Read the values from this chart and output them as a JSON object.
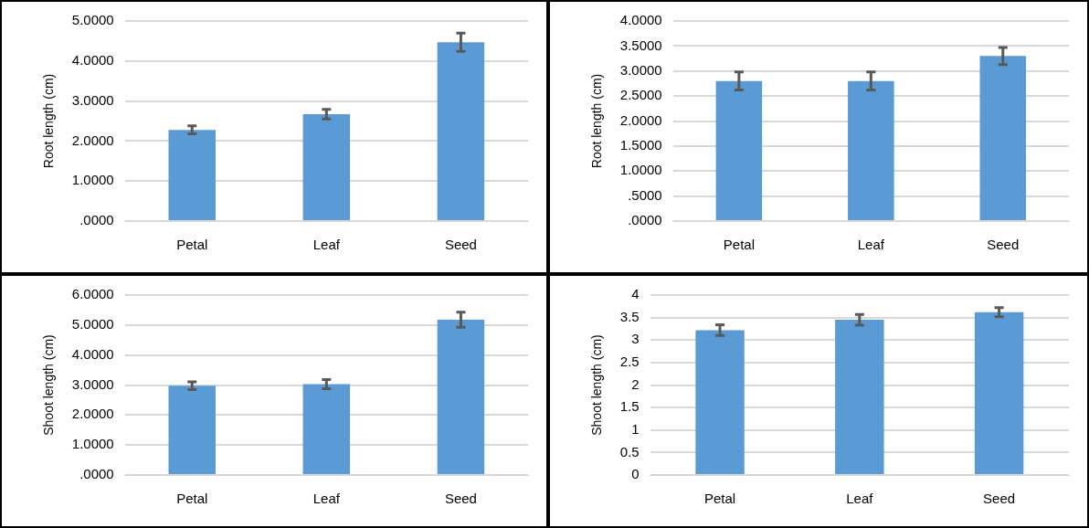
{
  "chart_data": [
    {
      "type": "bar",
      "ylabel": "Root length (cm)",
      "categories": [
        "Petal",
        "Leaf",
        "Seed"
      ],
      "values": [
        2.28,
        2.67,
        4.47
      ],
      "errors": [
        0.1,
        0.12,
        0.23
      ],
      "color": "#5b9bd5",
      "ylim": [
        0,
        5
      ],
      "yticks": [
        {
          "value": 0,
          "label": ".0000"
        },
        {
          "value": 1,
          "label": "1.0000"
        },
        {
          "value": 2,
          "label": "2.0000"
        },
        {
          "value": 3,
          "label": "3.0000"
        },
        {
          "value": 4,
          "label": "4.0000"
        },
        {
          "value": 5,
          "label": "5.0000"
        }
      ],
      "grid": "y"
    },
    {
      "type": "bar",
      "ylabel": "Root length (cm)",
      "categories": [
        "Petal",
        "Leaf",
        "Seed"
      ],
      "values": [
        2.8,
        2.8,
        3.3
      ],
      "errors": [
        0.18,
        0.18,
        0.17
      ],
      "color": "#5b9bd5",
      "ylim": [
        0,
        4
      ],
      "yticks": [
        {
          "value": 0,
          "label": ".0000"
        },
        {
          "value": 0.5,
          "label": ".5000"
        },
        {
          "value": 1,
          "label": "1.0000"
        },
        {
          "value": 1.5,
          "label": "1.5000"
        },
        {
          "value": 2,
          "label": "2.0000"
        },
        {
          "value": 2.5,
          "label": "2.5000"
        },
        {
          "value": 3,
          "label": "3.0000"
        },
        {
          "value": 3.5,
          "label": "3.5000"
        },
        {
          "value": 4,
          "label": "4.0000"
        }
      ],
      "grid": "y"
    },
    {
      "type": "bar",
      "ylabel": "Shoot length (cm)",
      "categories": [
        "Petal",
        "Leaf",
        "Seed"
      ],
      "values": [
        2.98,
        3.03,
        5.18
      ],
      "errors": [
        0.13,
        0.15,
        0.25
      ],
      "color": "#5b9bd5",
      "ylim": [
        0,
        6
      ],
      "yticks": [
        {
          "value": 0,
          "label": ".0000"
        },
        {
          "value": 1,
          "label": "1.0000"
        },
        {
          "value": 2,
          "label": "2.0000"
        },
        {
          "value": 3,
          "label": "3.0000"
        },
        {
          "value": 4,
          "label": "4.0000"
        },
        {
          "value": 5,
          "label": "5.0000"
        },
        {
          "value": 6,
          "label": "6.0000"
        }
      ],
      "grid": "y"
    },
    {
      "type": "bar",
      "ylabel": "Shoot length (cm)",
      "categories": [
        "Petal",
        "Leaf",
        "Seed"
      ],
      "values": [
        3.22,
        3.45,
        3.62
      ],
      "errors": [
        0.12,
        0.12,
        0.1
      ],
      "color": "#5b9bd5",
      "ylim": [
        0,
        4
      ],
      "yticks": [
        0,
        0.5,
        1,
        1.5,
        2,
        2.5,
        3,
        3.5,
        4
      ],
      "grid": "y"
    }
  ]
}
